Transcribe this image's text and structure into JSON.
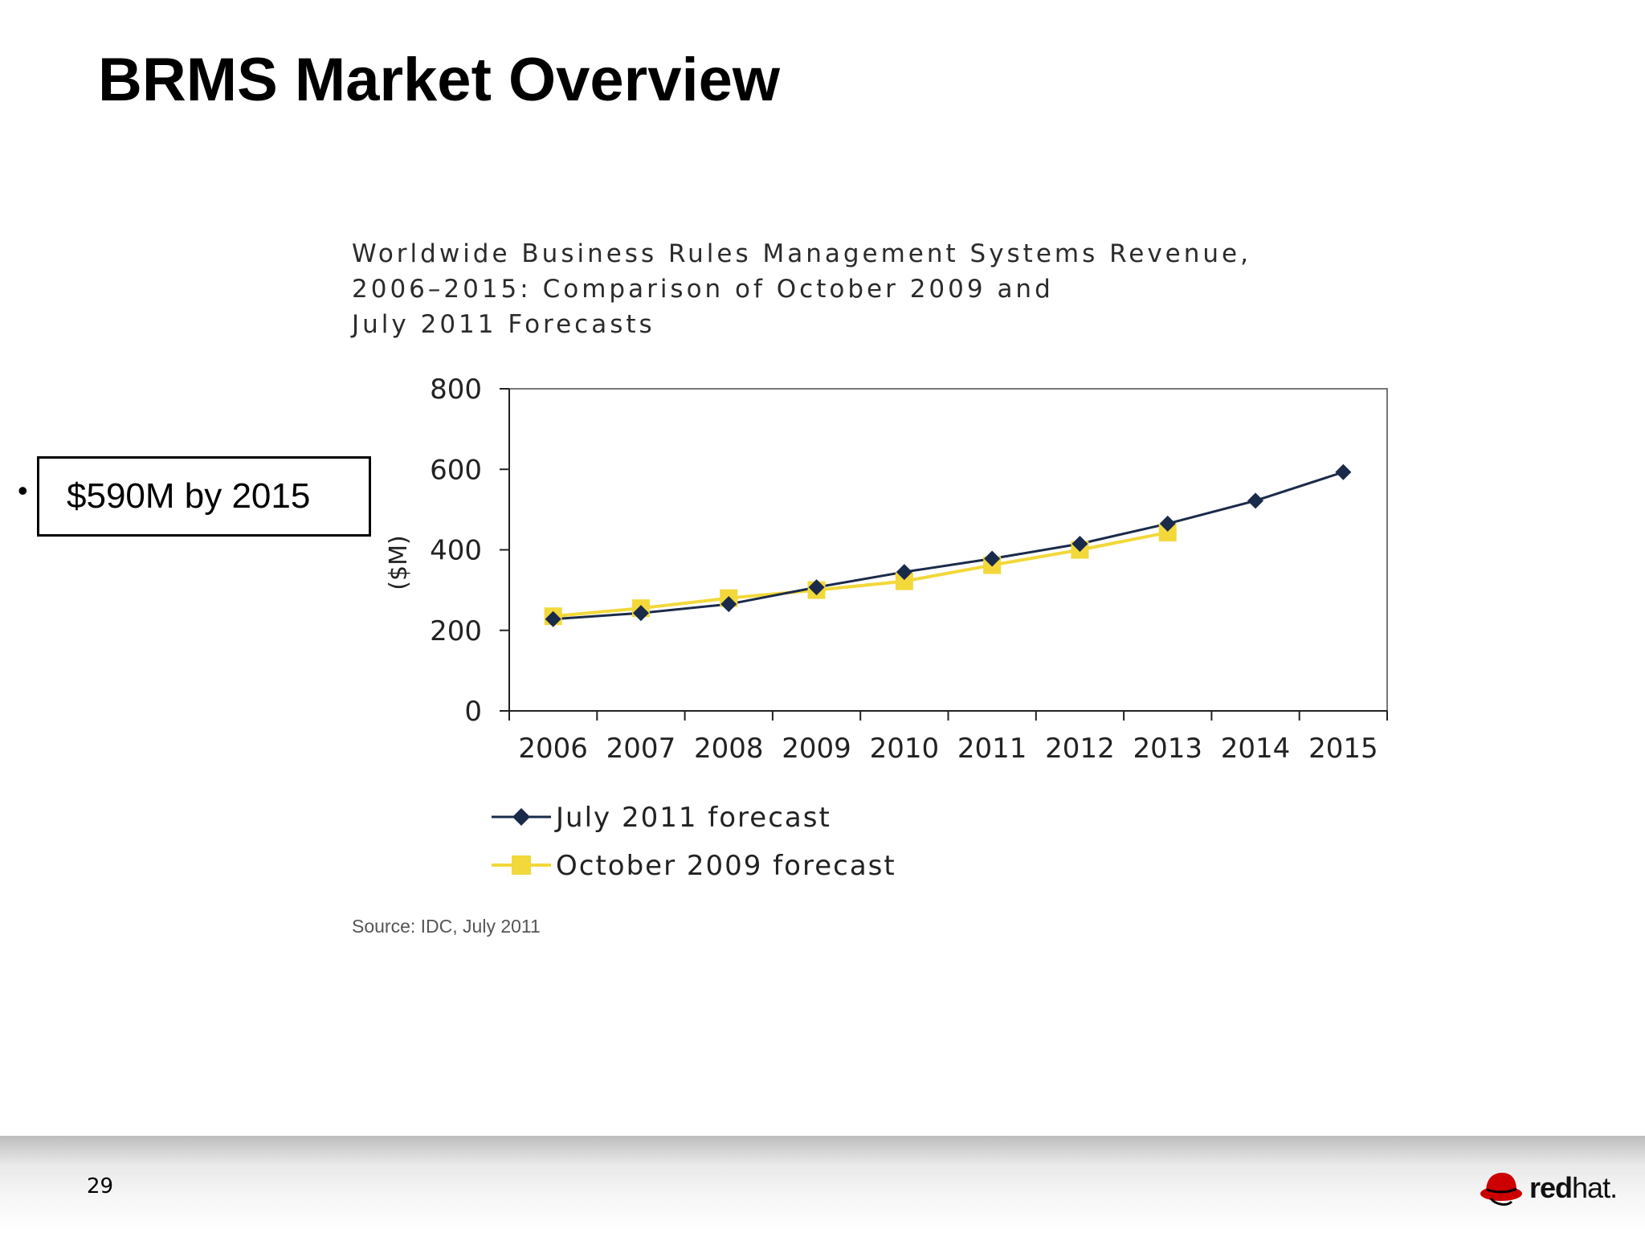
{
  "slide": {
    "title": "BRMS Market Overview",
    "bullet": "$590M by 2015",
    "page_number": "29",
    "logo": {
      "icon": "redhat-shadowman-icon",
      "text_bold": "red",
      "text_light": "hat.",
      "brand_color": "#cc0000"
    }
  },
  "chart_data": {
    "type": "line",
    "title_lines": [
      "Worldwide Business Rules Management Systems Revenue,",
      "2006–2015: Comparison of October 2009 and",
      "July 2011 Forecasts"
    ],
    "ylabel": "($M)",
    "xlabel": "",
    "ylim": [
      0,
      800
    ],
    "yticks": [
      "0",
      "200",
      "400",
      "600",
      "800"
    ],
    "categories": [
      "2006",
      "2007",
      "2008",
      "2009",
      "2010",
      "2011",
      "2012",
      "2013",
      "2014",
      "2015"
    ],
    "series": [
      {
        "name": "July 2011 forecast",
        "color": "#1a2a4a",
        "marker": "diamond",
        "values": [
          228,
          243,
          265,
          307,
          345,
          378,
          415,
          465,
          522,
          593
        ]
      },
      {
        "name": "October 2009 forecast",
        "color": "#f2d83a",
        "marker": "square",
        "values": [
          235,
          255,
          280,
          300,
          322,
          362,
          400,
          443,
          null,
          null
        ]
      }
    ],
    "legend_position": "bottom-left",
    "grid": false,
    "source": "Source: IDC, July 2011"
  }
}
